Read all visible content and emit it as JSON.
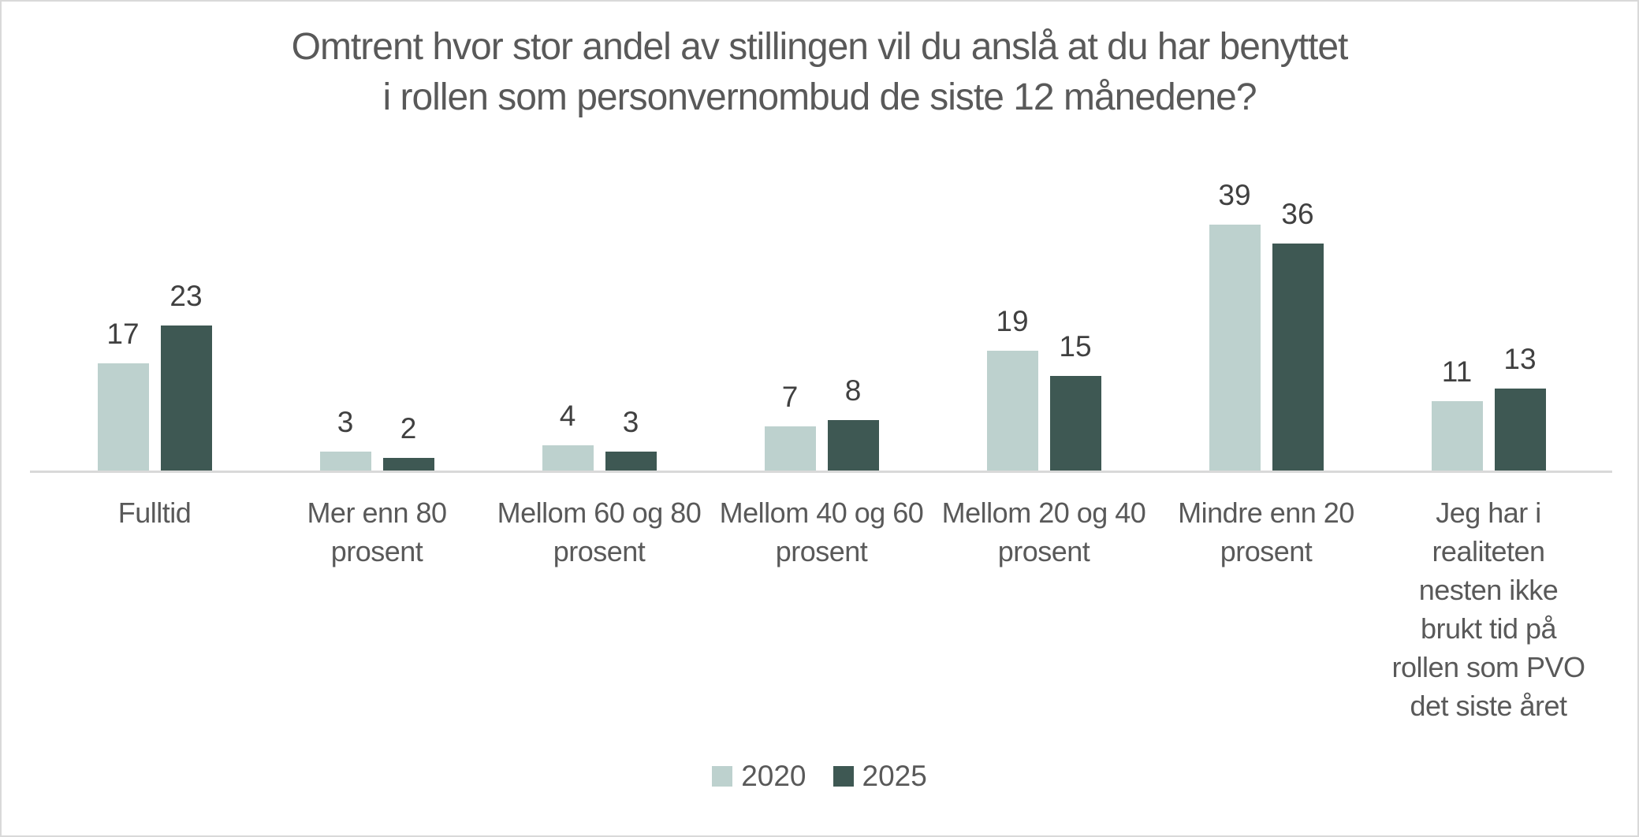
{
  "chart_data": {
    "type": "bar",
    "title": "Omtrent hvor stor andel av stillingen vil du anslå at du har benyttet i rollen som personvernombud de siste 12 månedene?",
    "title_lines": [
      "Omtrent hvor stor andel av stillingen vil du anslå at du har benyttet",
      "i rollen som personvernombud de siste 12 månedene?"
    ],
    "categories": [
      "Fulltid",
      "Mer enn 80 prosent",
      "Mellom 60 og 80 prosent",
      "Mellom 40 og 60 prosent",
      "Mellom 20 og 40 prosent",
      "Mindre enn 20 prosent",
      "Jeg har i realiteten nesten ikke brukt tid på rollen som PVO det siste året"
    ],
    "category_label_lines": [
      [
        "Fulltid"
      ],
      [
        "Mer enn 80",
        "prosent"
      ],
      [
        "Mellom 60 og 80",
        "prosent"
      ],
      [
        "Mellom 40 og 60",
        "prosent"
      ],
      [
        "Mellom 20 og 40",
        "prosent"
      ],
      [
        "Mindre enn 20",
        "prosent"
      ],
      [
        "Jeg har i",
        "realiteten",
        "nesten ikke",
        "brukt tid på",
        "rollen som PVO",
        "det siste året"
      ]
    ],
    "series": [
      {
        "name": "2020",
        "color": "#bdd1ce",
        "values": [
          17,
          3,
          4,
          7,
          19,
          39,
          11
        ]
      },
      {
        "name": "2025",
        "color": "#3e5853",
        "values": [
          23,
          2,
          3,
          8,
          15,
          36,
          13
        ]
      }
    ],
    "value_labels_shown": true,
    "xlabel": "",
    "ylabel": "",
    "ylim": [
      0,
      45
    ],
    "grid": false,
    "legend_position": "bottom",
    "colors": {
      "title_text": "#595959",
      "category_text": "#595959",
      "value_label_text": "#404040",
      "axis_line": "#d9d9d9",
      "frame_border": "#d9d9d9",
      "background": "#ffffff"
    }
  }
}
